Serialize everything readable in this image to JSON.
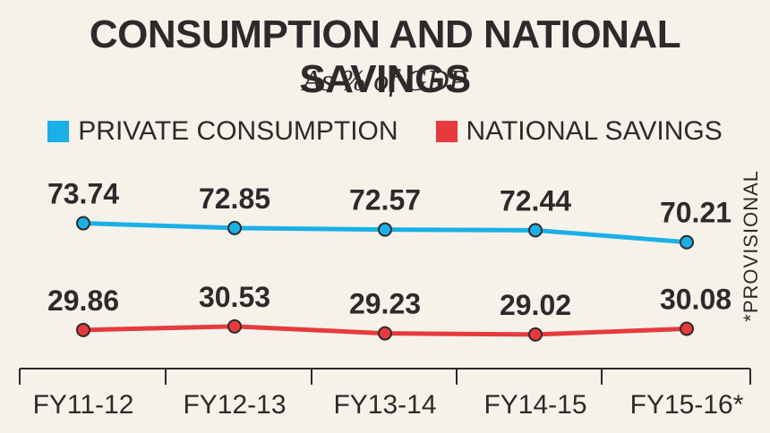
{
  "chart_data": {
    "type": "line",
    "title": "CONSUMPTION AND NATIONAL SAVINGS",
    "subtitle": "As % of GDP",
    "categories": [
      "FY11-12",
      "FY12-13",
      "FY13-14",
      "FY14-15",
      "FY15-16*"
    ],
    "series": [
      {
        "name": "PRIVATE CONSUMPTION",
        "color": "#1ab0e6",
        "values": [
          73.74,
          72.85,
          72.57,
          72.44,
          70.21
        ]
      },
      {
        "name": "NATIONAL SAVINGS",
        "color": "#e63a3f",
        "values": [
          29.86,
          30.53,
          29.23,
          29.02,
          30.08
        ]
      }
    ],
    "value_labels": {
      "PRIVATE CONSUMPTION": [
        "73.74",
        "72.85",
        "72.57",
        "72.44",
        "70.21"
      ],
      "NATIONAL SAVINGS": [
        "29.86",
        "30.53",
        "29.23",
        "29.02",
        "30.08"
      ]
    },
    "note": "*PROVISIONAL",
    "legend_position": "top-center",
    "grid": false
  }
}
